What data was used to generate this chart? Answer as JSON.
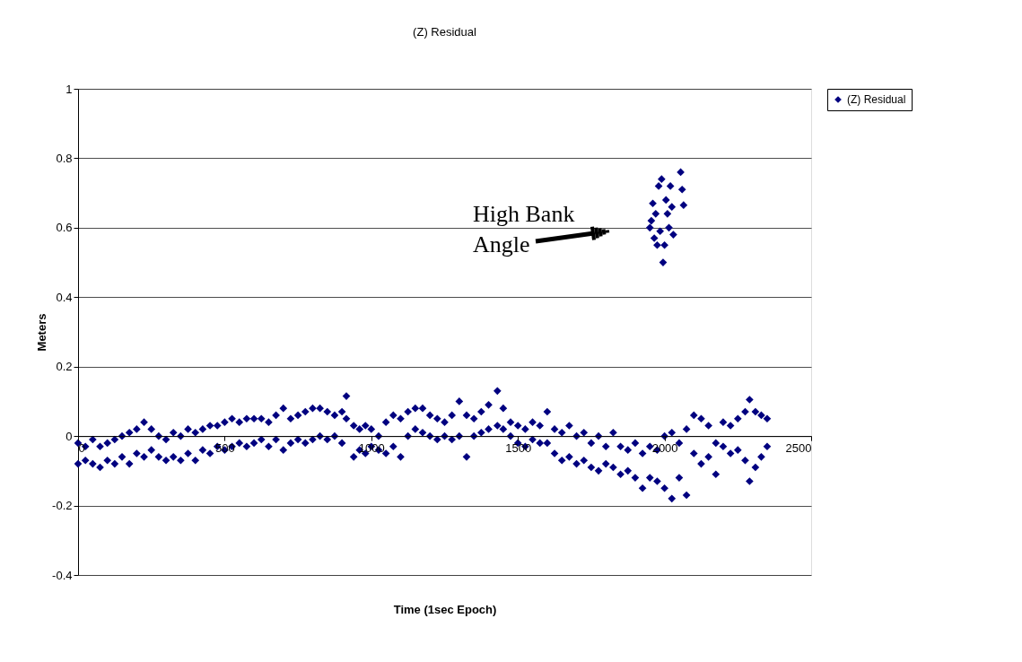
{
  "chart_data": {
    "type": "scatter",
    "title": "(Z) Residual",
    "xlabel": "Time (1sec Epoch)",
    "ylabel": "Meters",
    "xlim": [
      0,
      2500
    ],
    "xticks": [
      0,
      500,
      1000,
      1500,
      2000,
      2500
    ],
    "ylim": [
      -0.4,
      1
    ],
    "yticks": [
      -0.4,
      -0.2,
      0,
      0.2,
      0.4,
      0.6,
      0.8,
      1
    ],
    "grid": "y",
    "legend": "right",
    "marker": "diamond",
    "annotations": [
      "High Bank Angle"
    ],
    "series": [
      {
        "name": "(Z) Residual",
        "color": "#000080",
        "x": [
          0,
          0,
          25,
          25,
          50,
          50,
          75,
          75,
          100,
          100,
          125,
          125,
          150,
          150,
          175,
          175,
          200,
          200,
          225,
          225,
          250,
          250,
          275,
          275,
          300,
          300,
          325,
          325,
          350,
          350,
          375,
          375,
          400,
          400,
          425,
          425,
          450,
          450,
          475,
          475,
          500,
          500,
          525,
          525,
          550,
          550,
          575,
          575,
          600,
          600,
          625,
          625,
          650,
          650,
          675,
          675,
          700,
          700,
          725,
          725,
          750,
          750,
          775,
          775,
          800,
          800,
          825,
          825,
          850,
          850,
          875,
          875,
          900,
          900,
          915,
          915,
          940,
          940,
          960,
          960,
          980,
          980,
          1000,
          1000,
          1025,
          1025,
          1050,
          1050,
          1075,
          1075,
          1100,
          1100,
          1125,
          1125,
          1150,
          1150,
          1175,
          1175,
          1200,
          1200,
          1225,
          1225,
          1250,
          1250,
          1275,
          1275,
          1300,
          1300,
          1325,
          1325,
          1350,
          1350,
          1375,
          1375,
          1400,
          1400,
          1430,
          1430,
          1450,
          1450,
          1475,
          1475,
          1500,
          1500,
          1525,
          1525,
          1550,
          1550,
          1575,
          1575,
          1600,
          1600,
          1625,
          1625,
          1650,
          1650,
          1675,
          1675,
          1700,
          1700,
          1725,
          1725,
          1750,
          1750,
          1775,
          1775,
          1800,
          1800,
          1825,
          1825,
          1850,
          1850,
          1875,
          1875,
          1900,
          1900,
          1925,
          1925,
          1950,
          1950,
          1975,
          1975,
          2000,
          2000,
          2025,
          2025,
          2050,
          2050,
          2075,
          2075,
          2100,
          2100,
          2125,
          2125,
          2150,
          2150,
          2175,
          2175,
          2200,
          2200,
          2225,
          2225,
          2250,
          2250,
          2275,
          2275,
          2290,
          2290,
          2310,
          2310,
          2330,
          2330,
          2350,
          2350,
          1950,
          1955,
          1960,
          1965,
          1970,
          1975,
          1980,
          1985,
          1990,
          1995,
          2000,
          2005,
          2010,
          2015,
          2020,
          2025,
          2030,
          2055,
          2060,
          2065
        ],
        "values": [
          -0.02,
          -0.08,
          -0.03,
          -0.07,
          -0.01,
          -0.08,
          -0.03,
          -0.09,
          -0.02,
          -0.07,
          -0.01,
          -0.08,
          0.0,
          -0.06,
          0.01,
          -0.08,
          0.02,
          -0.05,
          0.04,
          -0.06,
          0.02,
          -0.04,
          0.0,
          -0.06,
          -0.01,
          -0.07,
          0.01,
          -0.06,
          0.0,
          -0.07,
          0.02,
          -0.05,
          0.01,
          -0.07,
          0.02,
          -0.04,
          0.03,
          -0.05,
          0.03,
          -0.03,
          0.04,
          -0.04,
          0.05,
          -0.03,
          0.04,
          -0.02,
          0.05,
          -0.03,
          0.05,
          -0.02,
          0.05,
          -0.01,
          0.04,
          -0.03,
          0.06,
          -0.01,
          0.08,
          -0.04,
          0.05,
          -0.02,
          0.06,
          -0.01,
          0.07,
          -0.02,
          0.08,
          -0.01,
          0.08,
          0.0,
          0.07,
          -0.01,
          0.06,
          0.0,
          0.07,
          -0.02,
          0.115,
          0.05,
          0.03,
          -0.06,
          0.02,
          -0.04,
          0.03,
          -0.05,
          0.02,
          -0.03,
          0.0,
          -0.04,
          0.04,
          -0.05,
          0.06,
          -0.03,
          0.05,
          -0.06,
          0.07,
          0.0,
          0.08,
          0.02,
          0.08,
          0.01,
          0.06,
          0.0,
          0.05,
          -0.01,
          0.04,
          0.0,
          0.06,
          -0.01,
          0.1,
          0.0,
          0.06,
          -0.06,
          0.05,
          0.0,
          0.07,
          0.01,
          0.09,
          0.02,
          0.13,
          0.03,
          0.08,
          0.02,
          0.04,
          0.0,
          0.03,
          -0.02,
          0.02,
          -0.03,
          0.04,
          -0.01,
          0.03,
          -0.02,
          0.07,
          -0.02,
          0.02,
          -0.05,
          0.01,
          -0.07,
          0.03,
          -0.06,
          0.0,
          -0.08,
          0.01,
          -0.07,
          -0.02,
          -0.09,
          0.0,
          -0.1,
          -0.03,
          -0.08,
          0.01,
          -0.09,
          -0.03,
          -0.11,
          -0.04,
          -0.1,
          -0.02,
          -0.12,
          -0.05,
          -0.15,
          -0.03,
          -0.12,
          -0.04,
          -0.13,
          0.0,
          -0.15,
          0.01,
          -0.18,
          -0.02,
          -0.12,
          0.02,
          -0.17,
          0.06,
          -0.05,
          0.05,
          -0.08,
          0.03,
          -0.06,
          -0.02,
          -0.11,
          0.04,
          -0.03,
          0.03,
          -0.05,
          0.05,
          -0.04,
          0.07,
          -0.07,
          0.105,
          -0.13,
          0.07,
          -0.09,
          0.06,
          -0.06,
          0.05,
          -0.03,
          0.6,
          0.62,
          0.67,
          0.57,
          0.64,
          0.55,
          0.72,
          0.59,
          0.74,
          0.5,
          0.55,
          0.68,
          0.64,
          0.6,
          0.72,
          0.66,
          0.58,
          0.76,
          0.71,
          0.665
        ]
      }
    ]
  }
}
